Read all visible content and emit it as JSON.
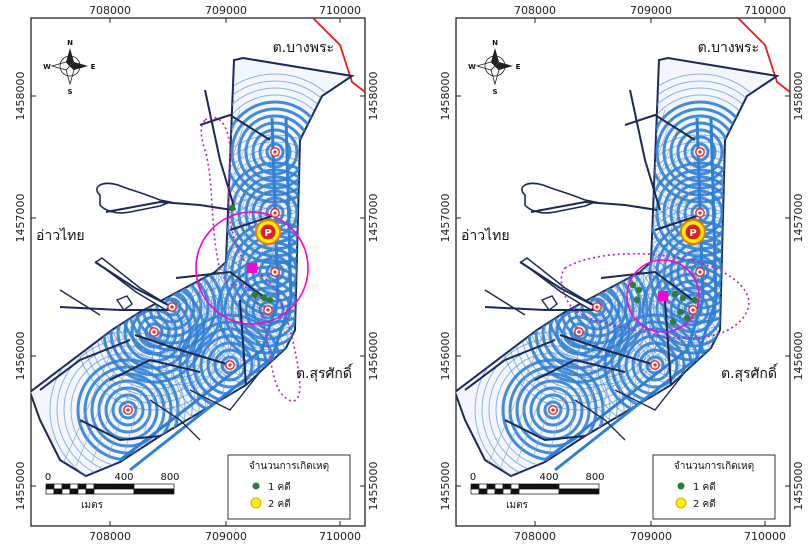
{
  "maps": [
    {
      "id": "left",
      "x_ticks": [
        "708000",
        "709000",
        "710000"
      ],
      "y_ticks": [
        "1458000",
        "1457000",
        "1456000",
        "1455000"
      ],
      "places": {
        "gulf": "อ่าวไทย",
        "bang_phra": "ต.บางพระ",
        "surasak": "ต.สุรศักดิ์"
      },
      "legend": {
        "title": "จำนวนการเกิดเหตุ",
        "items": [
          {
            "label": "1 คดี",
            "color": "#2e7d32"
          },
          {
            "label": "2 คดี",
            "color": "#ffee00"
          }
        ]
      },
      "scale": {
        "labels": [
          "0",
          "400",
          "800"
        ],
        "unit": "เมตร"
      },
      "north_arrow": {
        "N": "N",
        "S": "S",
        "E": "E",
        "W": "W"
      },
      "police_marker": "P"
    },
    {
      "id": "right",
      "x_ticks": [
        "708000",
        "709000",
        "710000"
      ],
      "y_ticks": [
        "1458000",
        "1457000",
        "1456000",
        "1455000"
      ],
      "places": {
        "gulf": "อ่าวไทย",
        "bang_phra": "ต.บางพระ",
        "surasak": "ต.สุรศักดิ์"
      },
      "legend": {
        "title": "จำนวนการเกิดเหตุ",
        "items": [
          {
            "label": "1 คดี",
            "color": "#2e7d32"
          },
          {
            "label": "2 คดี",
            "color": "#ffee00"
          }
        ]
      },
      "scale": {
        "labels": [
          "0",
          "400",
          "800"
        ],
        "unit": "เมตร"
      },
      "north_arrow": {
        "N": "N",
        "S": "S",
        "E": "E",
        "W": "W"
      },
      "police_marker": "P"
    }
  ],
  "colors": {
    "patrol_ring": "#2f7fd6",
    "road": "#1a2a55",
    "boundary": "#e02020",
    "centroid": "#ff00cc",
    "ellipse": "#c020c0",
    "incident": "#2e7d32",
    "checkpoint": "#e23030"
  }
}
